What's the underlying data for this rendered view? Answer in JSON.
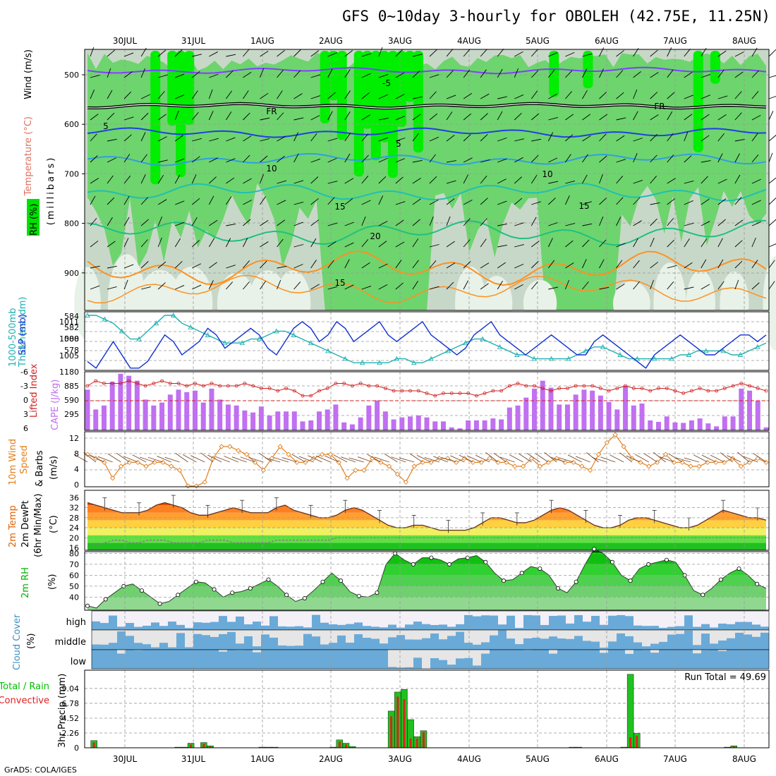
{
  "title": "GFS 0~10day 3-hourly for OBOLEH (42.75E, 11.25N)",
  "credit": "GrADS: COLA/IGES",
  "dates": [
    "30JUL",
    "31JUL",
    "1AUG",
    "2AUG",
    "3AUG",
    "4AUG",
    "5AUG",
    "6AUG",
    "7AUG",
    "8AUG"
  ],
  "panels": {
    "upper": {
      "labels": [
        "Wind (m/s)",
        "Temperature (°C)",
        "RH (%)",
        "(millibars)"
      ],
      "ticks": [
        "500",
        "600",
        "700",
        "800",
        "900"
      ],
      "contour_labels": [
        "-5",
        "FR",
        "5",
        "10",
        "15",
        "20"
      ],
      "colors": {
        "wind": "#000000",
        "temp_warm": "#ff8c00",
        "temp_cold": "#8040ff",
        "rh_high": "#00ee00",
        "rh_mid": "#6ed46e",
        "rh_low": "#c8d8c8"
      }
    },
    "slp": {
      "labels": [
        "1000-500mb",
        "Thickness (dm)",
        "SLP (mb)"
      ],
      "left_ticks": [
        "584",
        "582",
        "580",
        "578"
      ],
      "right_ticks": [
        "1011",
        "1008",
        "1005"
      ]
    },
    "cape": {
      "labels": [
        "Lifted Index",
        "CAPE (J/kg)"
      ],
      "left_ticks": [
        "-6",
        "-3",
        "0",
        "3",
        "6"
      ],
      "right_ticks": [
        "1180",
        "885",
        "590",
        "295"
      ]
    },
    "wind10m": {
      "labels": [
        "10m Wind",
        "Speed",
        "& Barbs",
        "(m/s)"
      ],
      "ticks": [
        "12",
        "8",
        "4",
        "0"
      ]
    },
    "temp2m": {
      "labels": [
        "2m Temp",
        "2m DewPt",
        "(6hr Min/Max)",
        "(°C)"
      ],
      "ticks": [
        "36",
        "32",
        "28",
        "24",
        "20",
        "16"
      ]
    },
    "rh2m": {
      "labels": [
        "2m RH",
        "(%)"
      ],
      "ticks": [
        "80",
        "70",
        "60",
        "50",
        "40"
      ]
    },
    "cloud": {
      "labels": [
        "Cloud Cover",
        "(%)"
      ],
      "layers": [
        "high",
        "middle",
        "low"
      ]
    },
    "precip": {
      "labels": [
        "Total / Rain",
        "Convective",
        "3hr Precip (mm)"
      ],
      "ticks": [
        "9.04",
        "6.78",
        "4.52",
        "2.26",
        "0"
      ],
      "run_total": "Run Total = 49.69"
    }
  },
  "chart_data": [
    {
      "type": "line",
      "title": "1000-500mb Thickness (dm) / SLP (mb)",
      "series": [
        {
          "name": "SLP (mb)",
          "color": "#1030d0",
          "values": [
            1005,
            1004,
            1006,
            1008,
            1006,
            1004,
            1004,
            1005,
            1007,
            1009,
            1008,
            1006,
            1007,
            1008,
            1010,
            1009,
            1007,
            1008,
            1009,
            1010,
            1009,
            1007,
            1006,
            1008,
            1010,
            1011,
            1010,
            1008,
            1009,
            1011,
            1010,
            1008,
            1009,
            1010,
            1011,
            1009,
            1008,
            1009,
            1010,
            1011,
            1009,
            1008,
            1007,
            1006,
            1007,
            1009,
            1010,
            1011,
            1009,
            1008,
            1007,
            1006,
            1007,
            1008,
            1009,
            1008,
            1007,
            1006,
            1006,
            1008,
            1009,
            1008,
            1007,
            1006,
            1005,
            1004,
            1006,
            1007,
            1008,
            1009,
            1008,
            1007,
            1006,
            1006,
            1007,
            1008,
            1009,
            1009,
            1008,
            1009
          ]
        },
        {
          "name": "1000-500mb Thickness (dm)",
          "color": "#20b0b0",
          "values": [
            584,
            584,
            583.5,
            583,
            582,
            581,
            581,
            582,
            583,
            584,
            584,
            583,
            582.5,
            582,
            581.5,
            581,
            580.5,
            580.5,
            580.5,
            581,
            581,
            581.5,
            582,
            582,
            581.5,
            581,
            580.5,
            580,
            579.5,
            579,
            578.5,
            578,
            578,
            578,
            578,
            578,
            578.5,
            578.5,
            578,
            578,
            578.5,
            579,
            579.5,
            580,
            580.5,
            581,
            581,
            580.5,
            580,
            579.5,
            579,
            579,
            578.5,
            578.5,
            578.5,
            578.5,
            578.5,
            579,
            579.5,
            580,
            580,
            579.5,
            579,
            578.5,
            578.5,
            578.5,
            578.5,
            578.5,
            578.5,
            579,
            579,
            579.5,
            579.5,
            579.5,
            579.5,
            579,
            579,
            579.5,
            580,
            580.5
          ]
        }
      ]
    },
    {
      "type": "bar",
      "title": "Lifted Index / CAPE (J/kg)",
      "series": [
        {
          "name": "CAPE (J/kg)",
          "color": "#c070f0",
          "values": [
            820,
            420,
            500,
            980,
            1140,
            1100,
            1000,
            620,
            500,
            560,
            720,
            820,
            770,
            800,
            560,
            840,
            620,
            520,
            500,
            400,
            360,
            480,
            300,
            380,
            380,
            380,
            180,
            200,
            380,
            420,
            520,
            160,
            120,
            260,
            500,
            600,
            380,
            220,
            260,
            280,
            300,
            260,
            180,
            180,
            60,
            40,
            200,
            200,
            200,
            240,
            220,
            460,
            500,
            660,
            840,
            1000,
            860,
            520,
            520,
            720,
            820,
            800,
            700,
            570,
            420,
            900,
            500,
            540,
            200,
            170,
            280,
            160,
            150,
            200,
            240,
            140,
            80,
            280,
            280,
            840,
            800,
            600,
            60
          ]
        },
        {
          "name": "Lifted Index",
          "color": "#d02020",
          "values": [
            -3,
            -4,
            -3.5,
            -3.5,
            -3.5,
            -4,
            -3.5,
            -3,
            -3.5,
            -4,
            -3.5,
            -3.5,
            -3,
            -3.5,
            -3,
            -3.5,
            -3,
            -3,
            -3,
            -3.5,
            -3,
            -2.5,
            -2.5,
            -2,
            -2.5,
            -2,
            -1,
            -1,
            -2,
            -2.5,
            -3.5,
            -3.5,
            -3,
            -3.5,
            -3,
            -3,
            -2.5,
            -2,
            -2,
            -2,
            -2,
            -1.5,
            -1,
            -1.5,
            -1.5,
            -1.5,
            -1.5,
            -1,
            -1.5,
            -2,
            -2,
            -3,
            -3.5,
            -3,
            -3,
            -2.5,
            -2,
            -2.5,
            -2.5,
            -3,
            -3,
            -3,
            -2.5,
            -2,
            -2.5,
            -3,
            -2.5,
            -2.5,
            -2,
            -2.5,
            -2.5,
            -2,
            -1.5,
            -2,
            -2.5,
            -2,
            -2,
            -2.5,
            -3,
            -3.5,
            -3,
            -2.5,
            -2
          ]
        }
      ]
    },
    {
      "type": "line",
      "title": "10m Wind Speed (m/s)",
      "series": [
        {
          "name": "10m Wind Speed (m/s)",
          "color": "#e08020",
          "values": [
            8,
            7,
            6,
            2,
            5,
            6,
            6,
            5,
            6,
            6,
            5,
            4,
            0,
            0,
            1,
            7,
            10,
            10,
            9,
            8,
            6,
            4,
            7,
            10,
            8,
            6,
            6,
            7,
            8,
            8,
            6,
            2,
            4,
            4,
            7,
            6,
            5,
            3,
            1,
            5,
            6,
            6,
            7,
            7,
            6,
            7,
            6,
            6,
            7,
            6,
            6,
            5,
            5,
            7,
            5,
            6,
            7,
            6,
            6,
            5,
            4,
            8,
            11,
            13,
            10,
            7,
            6,
            5,
            6,
            8,
            6,
            6,
            5,
            5,
            6,
            6,
            6,
            7,
            5,
            6,
            7,
            6
          ]
        }
      ]
    },
    {
      "type": "area",
      "title": "2m Temp / 2m DewPt (°C)",
      "series": [
        {
          "name": "2m Temp",
          "color": "#e06000",
          "values": [
            34,
            33,
            32,
            31,
            30,
            30,
            30,
            31,
            33,
            34,
            33,
            32,
            30,
            29,
            29,
            30,
            31,
            32,
            31,
            30,
            30,
            30,
            32,
            33,
            31,
            30,
            29,
            28,
            28,
            29,
            31,
            32,
            31,
            29,
            27,
            25,
            24,
            24,
            25,
            25,
            24,
            23,
            23,
            23,
            23,
            24,
            26,
            28,
            28,
            27,
            26,
            26,
            27,
            29,
            31,
            32,
            31,
            29,
            27,
            25,
            24,
            24,
            25,
            27,
            28,
            28,
            27,
            26,
            25,
            24,
            24,
            25,
            27,
            29,
            31,
            30,
            29,
            28,
            28,
            27
          ]
        },
        {
          "name": "2m DewPt",
          "color": "#808080",
          "values": [
            17,
            17,
            18,
            19,
            19,
            18,
            18,
            19,
            19,
            19,
            18,
            18,
            18,
            18,
            19,
            19,
            19,
            18,
            18,
            18,
            18,
            18,
            19,
            19,
            19,
            19,
            19,
            19,
            19,
            20,
            20,
            20,
            20,
            20,
            20,
            20,
            20,
            20,
            20,
            20,
            20,
            20,
            20,
            20,
            20,
            20,
            20,
            20,
            20,
            20,
            20,
            20,
            20,
            20,
            20,
            20,
            20,
            20,
            20,
            20,
            20,
            20,
            20,
            20,
            20,
            20,
            20,
            20,
            20,
            20,
            20,
            20,
            20,
            20,
            20,
            20,
            20,
            20,
            20,
            20
          ]
        }
      ]
    },
    {
      "type": "area",
      "title": "2m RH (%)",
      "series": [
        {
          "name": "2m RH (%)",
          "color": "#00c000",
          "values": [
            32,
            30,
            38,
            44,
            50,
            52,
            46,
            40,
            34,
            36,
            42,
            48,
            54,
            53,
            47,
            40,
            44,
            45,
            48,
            52,
            56,
            50,
            42,
            36,
            39,
            46,
            54,
            62,
            55,
            45,
            41,
            40,
            44,
            70,
            80,
            74,
            70,
            76,
            76,
            74,
            70,
            75,
            76,
            78,
            72,
            62,
            55,
            56,
            62,
            68,
            66,
            60,
            48,
            44,
            54,
            70,
            84,
            80,
            72,
            60,
            55,
            66,
            70,
            72,
            74,
            72,
            60,
            46,
            42,
            48,
            56,
            62,
            66,
            60,
            52,
            48
          ]
        }
      ]
    },
    {
      "type": "bar",
      "title": "3hr Precip (mm)",
      "series": [
        {
          "name": "Total",
          "color": "#20c020",
          "values": [
            0,
            1.1,
            0,
            0,
            0,
            0,
            0,
            0,
            0,
            0,
            0,
            0,
            0,
            0,
            0.1,
            0.1,
            0.7,
            0,
            0.8,
            0.3,
            0,
            0,
            0,
            0,
            0,
            0,
            0,
            0.1,
            0.1,
            0.1,
            0,
            0,
            0,
            0,
            0,
            0,
            0,
            0,
            0.1,
            1.2,
            0.7,
            0.2,
            0,
            0,
            0,
            0,
            0,
            5.6,
            8.5,
            8.9,
            4.3,
            1.7,
            2.6,
            0,
            0,
            0,
            0,
            0,
            0,
            0,
            0,
            0,
            0,
            0,
            0,
            0,
            0,
            0,
            0,
            0,
            0,
            0,
            0,
            0,
            0,
            0.1,
            0.1,
            0,
            0,
            0,
            0,
            0,
            0,
            0.1,
            11.2,
            2.2,
            0,
            0,
            0,
            0,
            0,
            0,
            0,
            0,
            0,
            0,
            0,
            0,
            0,
            0.1,
            0.3,
            0,
            0,
            0,
            0,
            0
          ]
        },
        {
          "name": "Convective",
          "color": "#e02020",
          "values": [
            0,
            0.8,
            0,
            0,
            0,
            0,
            0,
            0,
            0,
            0,
            0,
            0,
            0,
            0,
            0.1,
            0,
            0.5,
            0,
            0.6,
            0.2,
            0,
            0,
            0,
            0,
            0,
            0,
            0,
            0.1,
            0.1,
            0.1,
            0,
            0,
            0,
            0,
            0,
            0,
            0,
            0,
            0.1,
            0.9,
            0.5,
            0.1,
            0,
            0,
            0,
            0,
            0,
            4.8,
            7.8,
            7.4,
            1.4,
            1.4,
            2.4,
            0,
            0,
            0,
            0,
            0,
            0,
            0,
            0,
            0,
            0,
            0,
            0,
            0,
            0,
            0,
            0,
            0,
            0,
            0,
            0,
            0,
            0,
            0.1,
            0.1,
            0,
            0,
            0,
            0,
            0,
            0,
            0.1,
            1.6,
            1.8,
            0,
            0,
            0,
            0,
            0,
            0,
            0,
            0,
            0,
            0,
            0,
            0,
            0,
            0.1,
            0.2,
            0,
            0,
            0,
            0,
            0
          ]
        }
      ]
    }
  ]
}
